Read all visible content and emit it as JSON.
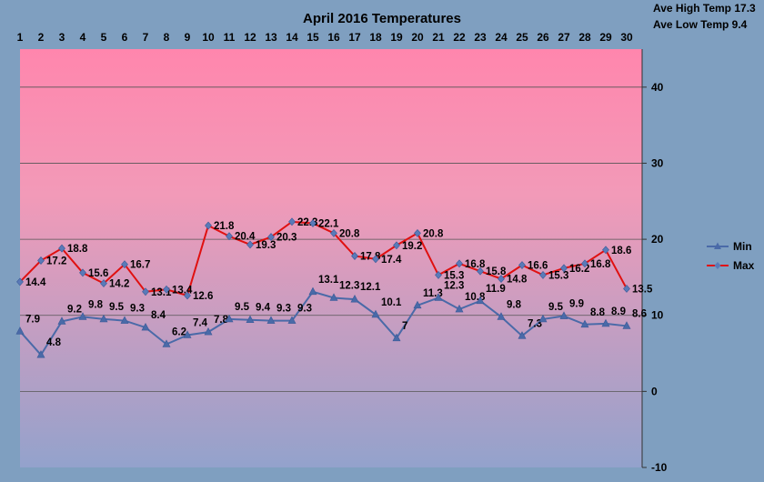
{
  "chart_data": {
    "type": "line",
    "title": "April 2016  Temperatures",
    "annotations": [
      "Ave High Temp 17.3",
      "Ave Low Temp 9.4"
    ],
    "x": [
      1,
      2,
      3,
      4,
      5,
      6,
      7,
      8,
      9,
      10,
      11,
      12,
      13,
      14,
      15,
      16,
      17,
      18,
      19,
      20,
      21,
      22,
      23,
      24,
      25,
      26,
      27,
      28,
      29,
      30
    ],
    "ylim": [
      -10,
      45
    ],
    "yticks": [
      -10,
      0,
      10,
      20,
      30,
      40
    ],
    "grid": true,
    "legend_position": "right",
    "series": [
      {
        "name": "Min",
        "color": "#4a6aa8",
        "marker": "triangle",
        "values": [
          7.9,
          4.8,
          9.2,
          9.8,
          9.5,
          9.3,
          8.4,
          6.2,
          7.4,
          7.8,
          9.5,
          9.4,
          9.3,
          9.3,
          13.1,
          12.3,
          12.1,
          10.1,
          7,
          11.3,
          12.3,
          10.8,
          11.9,
          9.8,
          7.3,
          9.5,
          9.9,
          8.8,
          8.9,
          8.6
        ]
      },
      {
        "name": "Max",
        "color": "#e01010",
        "marker": "diamond",
        "values": [
          14.4,
          17.2,
          18.8,
          15.6,
          14.2,
          16.7,
          13.1,
          13.4,
          12.6,
          21.8,
          20.4,
          19.3,
          20.3,
          22.3,
          22.1,
          20.8,
          17.8,
          17.4,
          19.2,
          20.8,
          15.3,
          16.8,
          15.8,
          14.8,
          16.6,
          15.3,
          16.2,
          16.8,
          18.6,
          13.5
        ]
      }
    ]
  }
}
